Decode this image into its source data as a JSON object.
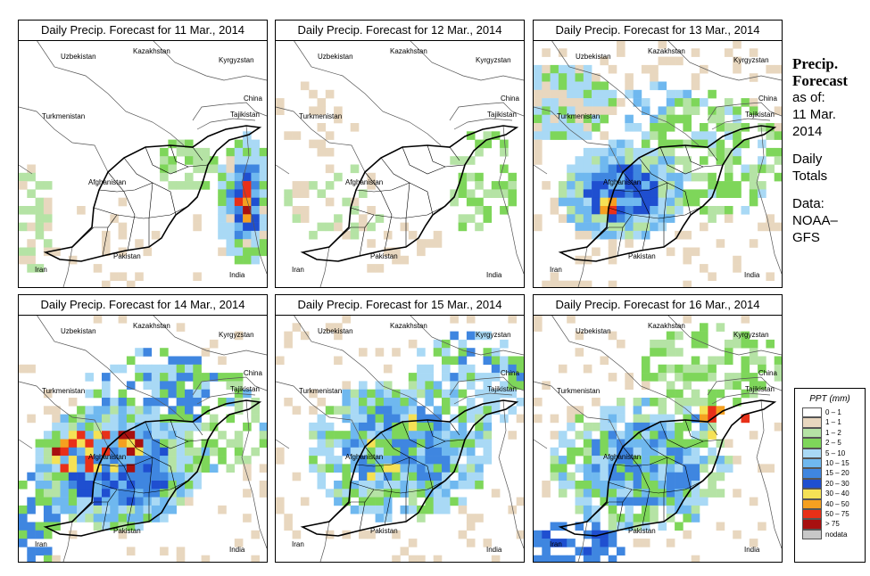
{
  "panels": [
    {
      "title": "Daily Precip. Forecast for  11 Mar., 2014",
      "pattern": "p11"
    },
    {
      "title": "Daily Precip. Forecast for  12 Mar., 2014",
      "pattern": "p12"
    },
    {
      "title": "Daily Precip. Forecast for  13 Mar., 2014",
      "pattern": "p13"
    },
    {
      "title": "Daily Precip. Forecast for  14 Mar., 2014",
      "pattern": "p14"
    },
    {
      "title": "Daily Precip. Forecast for  15 Mar., 2014",
      "pattern": "p15"
    },
    {
      "title": "Daily Precip. Forecast for  16 Mar., 2014",
      "pattern": "p16"
    }
  ],
  "countries": [
    "Uzbekistan",
    "Kazakhstan",
    "Kyrgyzstan",
    "China",
    "Turkmenistan",
    "Tajikistan",
    "Afghanistan",
    "Iran",
    "Pakistan",
    "India"
  ],
  "side": {
    "title1": "Precip.",
    "title2": "Forecast",
    "asof": "as of:",
    "date1": "11 Mar.",
    "date2": "2014",
    "daily1": "Daily",
    "daily2": "Totals",
    "data1": "Data:",
    "data2": "NOAA–",
    "data3": "GFS"
  },
  "legend": {
    "title": "PPT (mm)",
    "items": [
      {
        "label": "0 – 1",
        "color": "#ffffff"
      },
      {
        "label": "1 – 1",
        "color": "#e8d7bf"
      },
      {
        "label": "1 – 2",
        "color": "#b5e3a5"
      },
      {
        "label": "2 – 5",
        "color": "#7ed65a"
      },
      {
        "label": "5 – 10",
        "color": "#a9d9f5"
      },
      {
        "label": "10 – 15",
        "color": "#6fb8ef"
      },
      {
        "label": "15 – 20",
        "color": "#3f86e0"
      },
      {
        "label": "20 – 30",
        "color": "#1f4fd0"
      },
      {
        "label": "30 – 40",
        "color": "#f5e155"
      },
      {
        "label": "40 – 50",
        "color": "#f5a020"
      },
      {
        "label": "50 – 75",
        "color": "#e83018"
      },
      {
        "label": "> 75",
        "color": "#a81010"
      },
      {
        "label": "nodata",
        "color": "#c8c8c8"
      }
    ]
  }
}
